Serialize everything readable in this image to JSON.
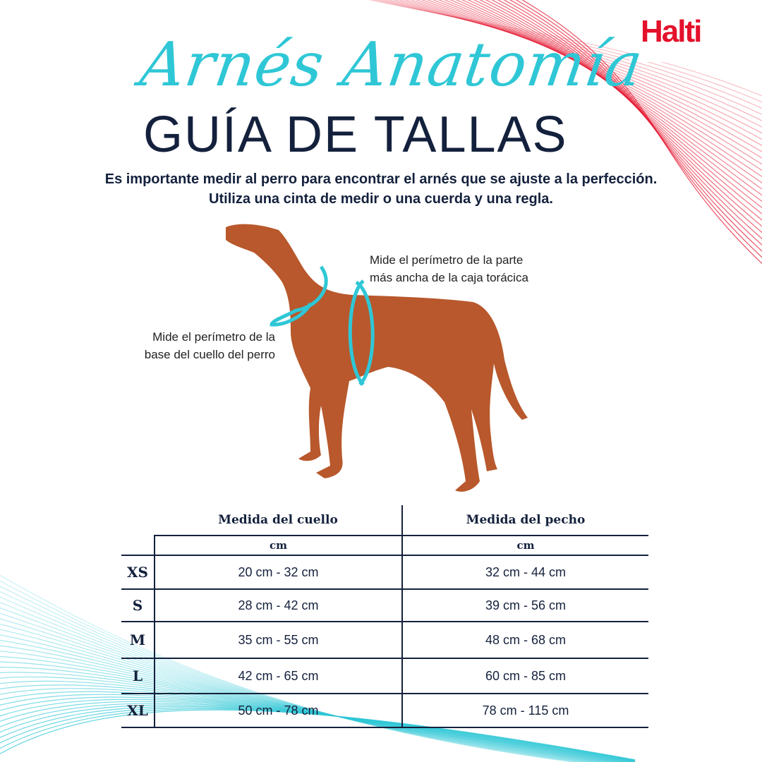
{
  "brand": {
    "logo": "Halti",
    "accent_red": "#e4112b",
    "accent_teal": "#2fc7d6",
    "navy": "#14213d"
  },
  "header": {
    "script_title": "Arnés Anatomía",
    "title": "GUÍA DE TALLAS"
  },
  "intro": {
    "line1": "Es importante medir al perro para encontrar el arnés que se ajuste a la perfección.",
    "line2": "Utiliza una cinta de medir o una cuerda y una regla."
  },
  "annotations": {
    "chest": {
      "line1": "Mide el perímetro de la parte",
      "line2": "más ancha de la caja torácica"
    },
    "neck": {
      "line1": "Mide el perímetro de la",
      "line2": "base del cuello del perro"
    }
  },
  "table": {
    "headers": [
      "Medida del cuello",
      "Medida del pecho"
    ],
    "units": [
      "cm",
      "cm"
    ],
    "rows": [
      {
        "size": "XS",
        "neck": "20 cm - 32 cm",
        "chest": "32 cm - 44 cm"
      },
      {
        "size": "S",
        "neck": "28 cm - 42 cm",
        "chest": "39 cm - 56 cm"
      },
      {
        "size": "M",
        "neck": "35 cm - 55 cm",
        "chest": "48 cm - 68 cm"
      },
      {
        "size": "L",
        "neck": "42 cm - 65 cm",
        "chest": "60 cm - 85 cm"
      },
      {
        "size": "XL",
        "neck": "50 cm - 78 cm",
        "chest": "78 cm - 115 cm"
      }
    ]
  }
}
